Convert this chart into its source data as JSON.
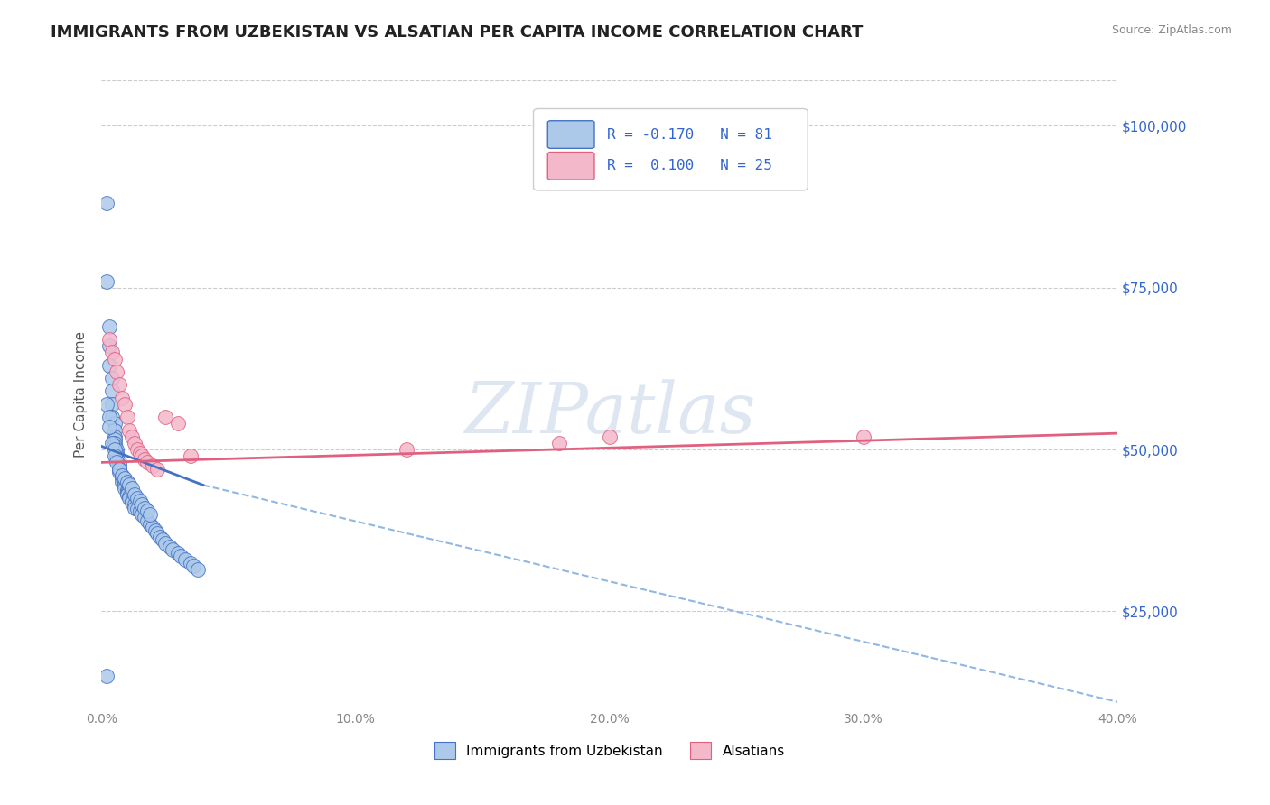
{
  "title": "IMMIGRANTS FROM UZBEKISTAN VS ALSATIAN PER CAPITA INCOME CORRELATION CHART",
  "source": "Source: ZipAtlas.com",
  "ylabel": "Per Capita Income",
  "xlim": [
    0.0,
    0.4
  ],
  "ylim": [
    10000,
    107000
  ],
  "yticks": [
    25000,
    50000,
    75000,
    100000
  ],
  "ytick_labels": [
    "$25,000",
    "$50,000",
    "$75,000",
    "$100,000"
  ],
  "xticks": [
    0.0,
    0.1,
    0.2,
    0.3,
    0.4
  ],
  "xtick_labels": [
    "0.0%",
    "10.0%",
    "20.0%",
    "30.0%",
    "40.0%"
  ],
  "background_color": "#ffffff",
  "grid_color": "#cccccc",
  "title_color": "#222222",
  "title_fontsize": 13,
  "legend_R1": "-0.170",
  "legend_N1": "81",
  "legend_R2": "0.100",
  "legend_N2": "25",
  "series1_color": "#adc9ea",
  "series2_color": "#f4b8cb",
  "line1_color": "#4472c4",
  "line2_color": "#e06080",
  "line_dashed_color": "#90b8e0",
  "blue_line_x0": 0.0,
  "blue_line_y0": 50500,
  "blue_line_x1": 0.04,
  "blue_line_y1": 44500,
  "dash_line_x0": 0.04,
  "dash_line_y0": 44500,
  "dash_line_x1": 0.4,
  "dash_line_y1": 11000,
  "pink_line_x0": 0.0,
  "pink_line_y0": 48000,
  "pink_line_x1": 0.4,
  "pink_line_y1": 52500,
  "scatter1_x": [
    0.002,
    0.002,
    0.003,
    0.003,
    0.003,
    0.004,
    0.004,
    0.004,
    0.004,
    0.005,
    0.005,
    0.005,
    0.005,
    0.005,
    0.005,
    0.006,
    0.006,
    0.006,
    0.006,
    0.007,
    0.007,
    0.007,
    0.007,
    0.008,
    0.008,
    0.008,
    0.008,
    0.009,
    0.009,
    0.009,
    0.01,
    0.01,
    0.01,
    0.01,
    0.011,
    0.011,
    0.012,
    0.012,
    0.013,
    0.013,
    0.014,
    0.015,
    0.016,
    0.017,
    0.018,
    0.019,
    0.02,
    0.021,
    0.022,
    0.023,
    0.024,
    0.025,
    0.027,
    0.028,
    0.03,
    0.031,
    0.033,
    0.035,
    0.036,
    0.038,
    0.002,
    0.003,
    0.003,
    0.004,
    0.005,
    0.005,
    0.006,
    0.007,
    0.008,
    0.009,
    0.01,
    0.011,
    0.012,
    0.013,
    0.014,
    0.015,
    0.016,
    0.017,
    0.018,
    0.019,
    0.002
  ],
  "scatter1_y": [
    88000,
    76000,
    69000,
    66000,
    63000,
    61000,
    59000,
    57000,
    55000,
    54000,
    53000,
    52000,
    51500,
    51000,
    50500,
    50000,
    49500,
    49000,
    48500,
    48000,
    47500,
    47000,
    46500,
    46000,
    45800,
    45500,
    45000,
    44800,
    44500,
    44000,
    43800,
    43500,
    43200,
    43000,
    42800,
    42500,
    42000,
    41800,
    41500,
    41000,
    40800,
    40500,
    40000,
    39500,
    39000,
    38500,
    38000,
    37500,
    37000,
    36500,
    36000,
    35500,
    35000,
    34500,
    34000,
    33500,
    33000,
    32500,
    32000,
    31500,
    57000,
    55000,
    53500,
    51000,
    50000,
    49000,
    48000,
    47000,
    46000,
    45500,
    45000,
    44500,
    44000,
    43000,
    42500,
    42000,
    41500,
    41000,
    40500,
    40000,
    15000
  ],
  "scatter2_x": [
    0.003,
    0.004,
    0.005,
    0.006,
    0.007,
    0.008,
    0.009,
    0.01,
    0.011,
    0.012,
    0.013,
    0.014,
    0.015,
    0.016,
    0.017,
    0.018,
    0.02,
    0.022,
    0.025,
    0.03,
    0.035,
    0.2,
    0.3,
    0.18,
    0.12
  ],
  "scatter2_y": [
    67000,
    65000,
    64000,
    62000,
    60000,
    58000,
    57000,
    55000,
    53000,
    52000,
    51000,
    50000,
    49500,
    49000,
    48500,
    48000,
    47500,
    47000,
    55000,
    54000,
    49000,
    52000,
    52000,
    51000,
    50000
  ]
}
